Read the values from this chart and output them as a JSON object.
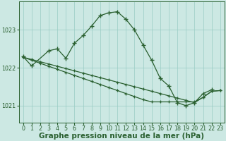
{
  "title": "Graphe pression niveau de la mer (hPa)",
  "background_color": "#cce8e3",
  "grid_color": "#99ccc4",
  "line_color": "#2a6030",
  "x_hours": [
    0,
    1,
    2,
    3,
    4,
    5,
    6,
    7,
    8,
    9,
    10,
    11,
    12,
    13,
    14,
    15,
    16,
    17,
    18,
    19,
    20,
    21,
    22,
    23
  ],
  "arch_y": [
    1022.3,
    1022.05,
    null,
    1022.45,
    1022.5,
    1022.25,
    1022.65,
    1022.85,
    1023.1,
    1023.38,
    1023.45,
    1023.48,
    1023.28,
    1023.0,
    1022.6,
    1022.2,
    1021.72,
    1021.52,
    1021.08,
    1021.0,
    1021.08,
    1021.32,
    1021.42,
    null
  ],
  "diag1_y": [
    1022.28,
    1022.22,
    1022.16,
    1022.1,
    1022.04,
    1021.98,
    1021.92,
    1021.86,
    1021.8,
    1021.74,
    1021.68,
    1021.62,
    1021.56,
    1021.5,
    1021.44,
    1021.38,
    1021.32,
    1021.26,
    1021.2,
    1021.14,
    1021.08,
    1021.22,
    1021.38,
    1021.4
  ],
  "diag2_y": [
    1022.28,
    1022.2,
    1022.12,
    1022.04,
    1021.96,
    1021.88,
    1021.8,
    1021.72,
    1021.64,
    1021.56,
    1021.48,
    1021.4,
    1021.32,
    1021.24,
    1021.16,
    1021.1,
    1021.1,
    1021.1,
    1021.1,
    1021.1,
    1021.1,
    1021.22,
    1021.38,
    1021.4
  ],
  "ylim": [
    1020.55,
    1023.75
  ],
  "yticks": [
    1021,
    1022,
    1023
  ],
  "title_fontsize": 7.5,
  "tick_fontsize": 5.8
}
